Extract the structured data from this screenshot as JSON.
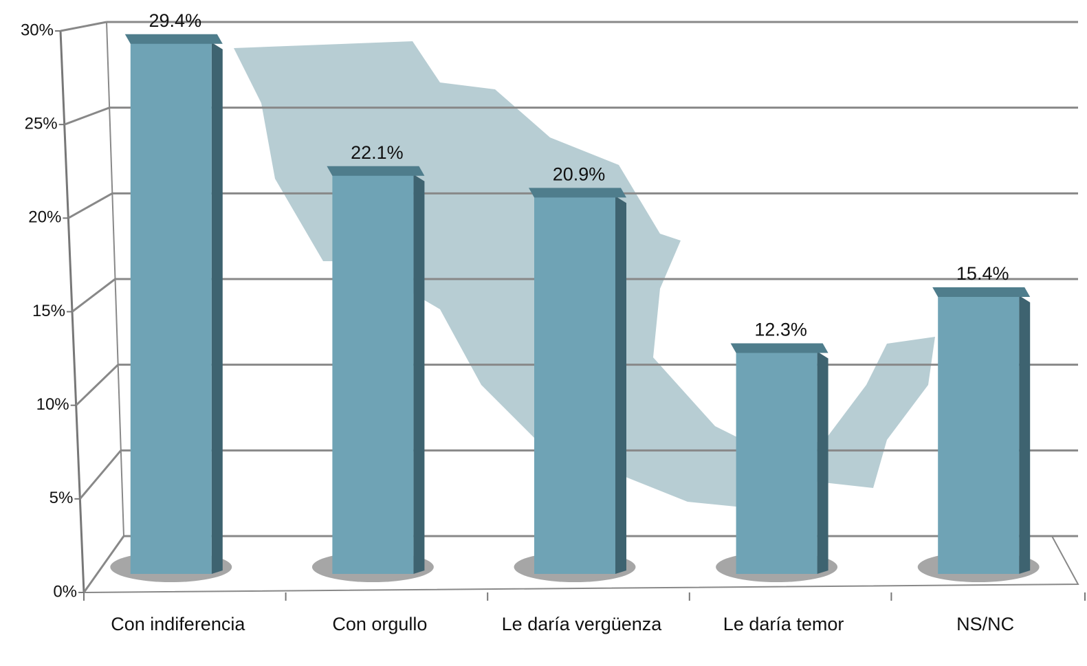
{
  "chart_data": {
    "type": "bar",
    "categories": [
      "Con indiferencia",
      "Con orgullo",
      "Le daría vergüenza",
      "Le daría temor",
      "NS/NC"
    ],
    "values": [
      29.4,
      22.1,
      20.9,
      12.3,
      15.4
    ],
    "value_labels": [
      "29.4%",
      "22.1%",
      "20.9%",
      "12.3%",
      "15.4%"
    ],
    "color": "#6fa3b5",
    "ylim": [
      0,
      30
    ],
    "yticks": [
      {
        "value": 0,
        "label": "0%"
      },
      {
        "value": 5,
        "label": "5%"
      },
      {
        "value": 10,
        "label": "10%"
      },
      {
        "value": 15,
        "label": "15%"
      },
      {
        "value": 20,
        "label": "20%"
      },
      {
        "value": 25,
        "label": "25%"
      },
      {
        "value": 30,
        "label": "30%"
      }
    ],
    "grid": true
  }
}
